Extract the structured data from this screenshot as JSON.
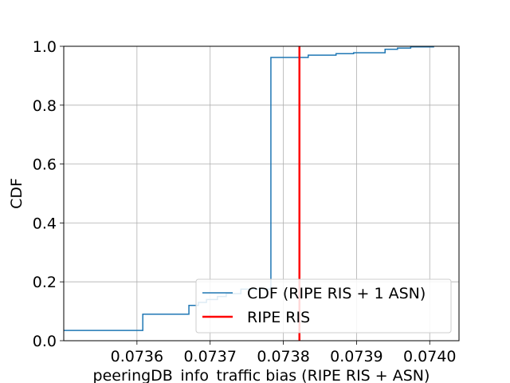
{
  "chart_data": {
    "type": "line",
    "xlabel": "peeringDB_info_traffic bias (RIPE RIS + ASN)",
    "ylabel": "CDF",
    "xlim": [
      0.0735,
      0.07404
    ],
    "ylim": [
      0.0,
      1.0
    ],
    "x_ticks": [
      0.0736,
      0.0737,
      0.0738,
      0.0739,
      0.074
    ],
    "x_tick_labels": [
      "0.0736",
      "0.0737",
      "0.0738",
      "0.0739",
      "0.0740"
    ],
    "y_ticks": [
      0.0,
      0.2,
      0.4,
      0.6,
      0.8,
      1.0
    ],
    "y_tick_labels": [
      "0.0",
      "0.2",
      "0.4",
      "0.6",
      "0.8",
      "1.0"
    ],
    "grid": true,
    "legend_position": "lower-right",
    "series": [
      {
        "name": "CDF (RIPE RIS + 1 ASN)",
        "kind": "step",
        "color": "#1f77b4",
        "x": [
          0.0735,
          0.073608,
          0.073608,
          0.073671,
          0.073671,
          0.073684,
          0.073684,
          0.073695,
          0.073695,
          0.07371,
          0.07371,
          0.073722,
          0.073722,
          0.073742,
          0.073742,
          0.073783,
          0.073783,
          0.073834,
          0.073834,
          0.073872,
          0.073872,
          0.073896,
          0.073896,
          0.073939,
          0.073939,
          0.073956,
          0.073956,
          0.073974,
          0.073974,
          0.074006
        ],
        "y": [
          0.035,
          0.035,
          0.09,
          0.09,
          0.12,
          0.12,
          0.13,
          0.13,
          0.14,
          0.14,
          0.15,
          0.15,
          0.16,
          0.16,
          0.175,
          0.175,
          0.962,
          0.962,
          0.97,
          0.97,
          0.975,
          0.975,
          0.978,
          0.978,
          0.99,
          0.99,
          0.994,
          0.994,
          0.998,
          0.998
        ]
      },
      {
        "name": "RIPE RIS",
        "kind": "vline",
        "color": "#ff0000",
        "x": 0.073822
      }
    ]
  }
}
